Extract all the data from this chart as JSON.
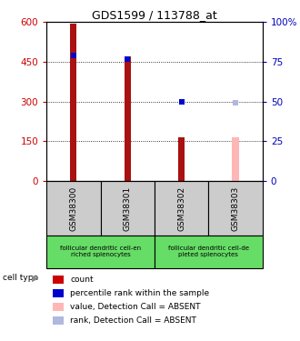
{
  "title": "GDS1599 / 113788_at",
  "samples": [
    "GSM38300",
    "GSM38301",
    "GSM38302",
    "GSM38303"
  ],
  "count_values": [
    595,
    470,
    165,
    165
  ],
  "rank_values": [
    79,
    77,
    50,
    49
  ],
  "bar_colors": [
    "#aa1111",
    "#aa1111",
    "#aa1111",
    "#ffb6b6"
  ],
  "dot_colors": [
    "#0000cc",
    "#0000cc",
    "#0000cc",
    "#b0b8df"
  ],
  "left_ylim": [
    0,
    600
  ],
  "right_ylim": [
    0,
    100
  ],
  "left_yticks": [
    0,
    150,
    300,
    450,
    600
  ],
  "right_yticks": [
    0,
    25,
    50,
    75,
    100
  ],
  "right_yticklabels": [
    "0",
    "25",
    "50",
    "75",
    "100%"
  ],
  "cell_type_groups": [
    {
      "label": "follicular dendritic cell-en\nriched splenocytes",
      "cols": [
        0,
        1
      ],
      "color": "#66dd66"
    },
    {
      "label": "follicular dendritic cell-de\npleted splenocytes",
      "cols": [
        2,
        3
      ],
      "color": "#66dd66"
    }
  ],
  "cell_type_text": "cell type",
  "legend_items": [
    {
      "color": "#cc0000",
      "label": "count"
    },
    {
      "color": "#0000cc",
      "label": "percentile rank within the sample"
    },
    {
      "color": "#ffb6b6",
      "label": "value, Detection Call = ABSENT"
    },
    {
      "color": "#b0b8df",
      "label": "rank, Detection Call = ABSENT"
    }
  ],
  "bar_width": 0.12,
  "dot_size": 18,
  "background_color": "#ffffff",
  "left_tick_color": "#cc0000",
  "right_tick_color": "#0000bb",
  "sample_box_color": "#cccccc"
}
